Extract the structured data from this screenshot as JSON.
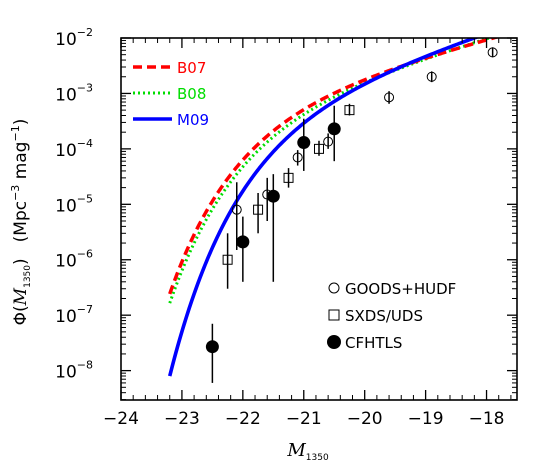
{
  "chart_data": {
    "type": "line",
    "xlabel": "M",
    "xlabel_sub": "1350",
    "ylabel": {
      "phi": "Φ(",
      "m": "M",
      "sub": "1350",
      "close": ")",
      "units_open": "(Mpc",
      "units_exp1": "−3",
      "units_mid": " mag",
      "units_exp2": "−1",
      "units_close": ")"
    },
    "xlim": [
      -24,
      -17.5
    ],
    "ylim_log10": [
      -8.53,
      -2
    ],
    "y_scale": "log",
    "grid": false,
    "x_ticks": [
      -24,
      -23,
      -22,
      -21,
      -20,
      -19,
      -18
    ],
    "x_tick_labels": [
      "−24",
      "−23",
      "−22",
      "−21",
      "−20",
      "−19",
      "−18"
    ],
    "y_ticks": [
      {
        "base": "10",
        "exp": "−2",
        "log": -2
      },
      {
        "base": "10",
        "exp": "−3",
        "log": -3
      },
      {
        "base": "10",
        "exp": "−4",
        "log": -4
      },
      {
        "base": "10",
        "exp": "−5",
        "log": -5
      },
      {
        "base": "10",
        "exp": "−6",
        "log": -6
      },
      {
        "base": "10",
        "exp": "−7",
        "log": -7
      },
      {
        "base": "10",
        "exp": "−8",
        "log": -8
      }
    ],
    "legend_lines_position": "top-left",
    "legend_points_position": "bottom-right",
    "series": [
      {
        "name": "B07",
        "color": "#ff0000",
        "dash": "dashed",
        "params": {
          "M_star": -21.07,
          "alpha": -1.73,
          "log_phi_star": -2.87
        }
      },
      {
        "name": "B08",
        "color": "#00dd00",
        "dash": "dotted",
        "params": {
          "M_star": -21.07,
          "alpha": -1.82,
          "log_phi_star": -2.96
        }
      },
      {
        "name": "M09",
        "color": "#0000ff",
        "dash": "solid",
        "params": {
          "M_star": -20.7,
          "alpha": -1.9,
          "log_phi_star": -2.82
        }
      }
    ],
    "points": [
      {
        "name": "GOODS+HUDF",
        "marker": "open-circle",
        "data": [
          {
            "x": -22.1,
            "y": 8e-06,
            "ylo": 1.5e-06,
            "yhi": 2.5e-05
          },
          {
            "x": -21.6,
            "y": 1.5e-05,
            "ylo": 5e-06,
            "yhi": 3e-05
          },
          {
            "x": -21.1,
            "y": 7e-05,
            "ylo": 5e-05,
            "yhi": 9.5e-05
          },
          {
            "x": -20.6,
            "y": 0.000135,
            "ylo": 0.0001,
            "yhi": 0.00019
          },
          {
            "x": -19.6,
            "y": 0.00085,
            "ylo": 0.00065,
            "yhi": 0.0011
          },
          {
            "x": -18.9,
            "y": 0.002,
            "ylo": 0.0016,
            "yhi": 0.0025
          },
          {
            "x": -17.9,
            "y": 0.0055,
            "ylo": 0.0045,
            "yhi": 0.0068
          }
        ]
      },
      {
        "name": "SXDS/UDS",
        "marker": "open-square",
        "data": [
          {
            "x": -22.25,
            "y": 1e-06,
            "ylo": 3e-07,
            "yhi": 3e-06
          },
          {
            "x": -21.75,
            "y": 8e-06,
            "ylo": 3e-06,
            "yhi": 1.6e-05
          },
          {
            "x": -21.25,
            "y": 3e-05,
            "ylo": 2e-05,
            "yhi": 4.5e-05
          },
          {
            "x": -20.75,
            "y": 0.0001,
            "ylo": 7.5e-05,
            "yhi": 0.00014
          },
          {
            "x": -20.25,
            "y": 0.0005,
            "ylo": 0.0004,
            "yhi": 0.00065
          }
        ]
      },
      {
        "name": "CFHTLS",
        "marker": "filled-circle",
        "data": [
          {
            "x": -22.5,
            "y": 2.7e-08,
            "ylo": 6e-09,
            "yhi": 7e-08
          },
          {
            "x": -22.0,
            "y": 2.1e-06,
            "ylo": 4e-07,
            "yhi": 6e-06
          },
          {
            "x": -21.5,
            "y": 1.4e-05,
            "ylo": 4e-07,
            "yhi": 3.5e-05
          },
          {
            "x": -21.0,
            "y": 0.00013,
            "ylo": 4e-05,
            "yhi": 0.00035
          },
          {
            "x": -20.5,
            "y": 0.00023,
            "ylo": 6e-05,
            "yhi": 0.0006
          }
        ]
      }
    ]
  }
}
